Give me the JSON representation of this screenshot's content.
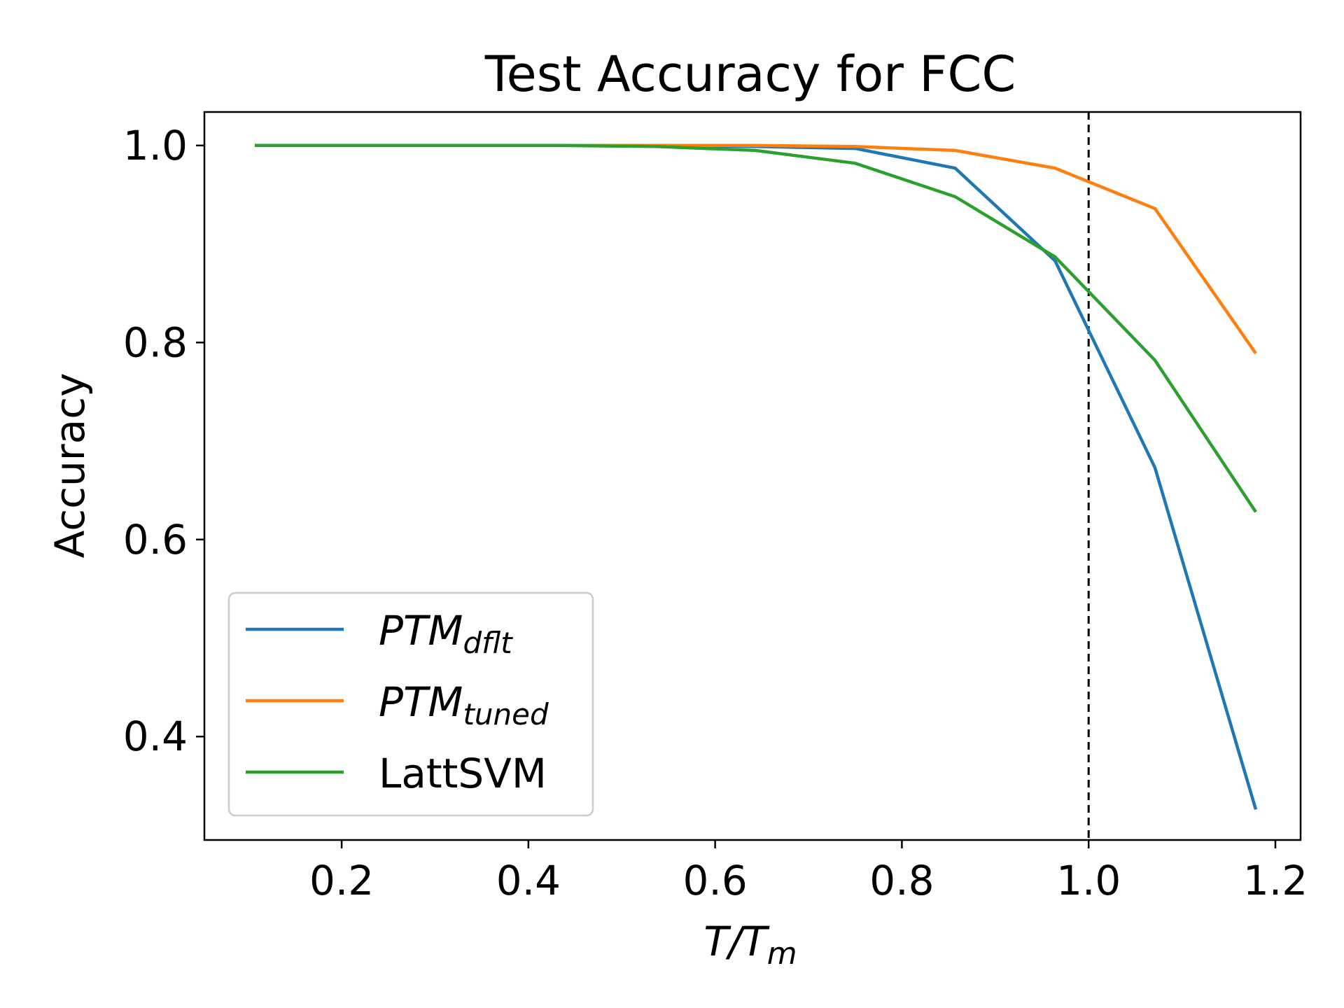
{
  "chart_data": {
    "type": "line",
    "title": "Test Accuracy for FCC",
    "xlabel": {
      "main": "T/T",
      "sub": "m"
    },
    "ylabel": "Accuracy",
    "xlim": [
      0.053,
      1.227
    ],
    "ylim": [
      0.295,
      1.034
    ],
    "xticks": [
      0.2,
      0.4,
      0.6,
      0.8,
      1.0,
      1.2
    ],
    "xtick_labels": [
      "0.2",
      "0.4",
      "0.6",
      "0.8",
      "1.0",
      "1.2"
    ],
    "yticks": [
      0.4,
      0.6,
      0.8,
      1.0
    ],
    "ytick_labels": [
      "0.4",
      "0.6",
      "0.8",
      "1.0"
    ],
    "vline": {
      "x": 1.0,
      "style": "dashed",
      "color": "#000000"
    },
    "x": [
      0.107,
      0.214,
      0.321,
      0.429,
      0.536,
      0.643,
      0.75,
      0.857,
      0.964,
      1.071,
      1.179
    ],
    "series": [
      {
        "name": "PTM",
        "name_sub": "dflt",
        "italic": true,
        "color": "#1f77b4",
        "values": [
          1.0,
          1.0,
          1.0,
          1.0,
          1.0,
          0.999,
          0.997,
          0.977,
          0.883,
          0.673,
          0.326
        ]
      },
      {
        "name": "PTM",
        "name_sub": "tuned",
        "italic": true,
        "color": "#ff7f0e",
        "values": [
          1.0,
          1.0,
          1.0,
          1.0,
          1.0,
          1.0,
          0.999,
          0.995,
          0.977,
          0.936,
          0.789
        ]
      },
      {
        "name": "LattSVM",
        "name_sub": "",
        "italic": false,
        "color": "#2ca02c",
        "values": [
          1.0,
          1.0,
          1.0,
          1.0,
          0.999,
          0.995,
          0.982,
          0.948,
          0.887,
          0.782,
          0.628
        ]
      }
    ],
    "grid": false,
    "legend": "lower-left"
  }
}
